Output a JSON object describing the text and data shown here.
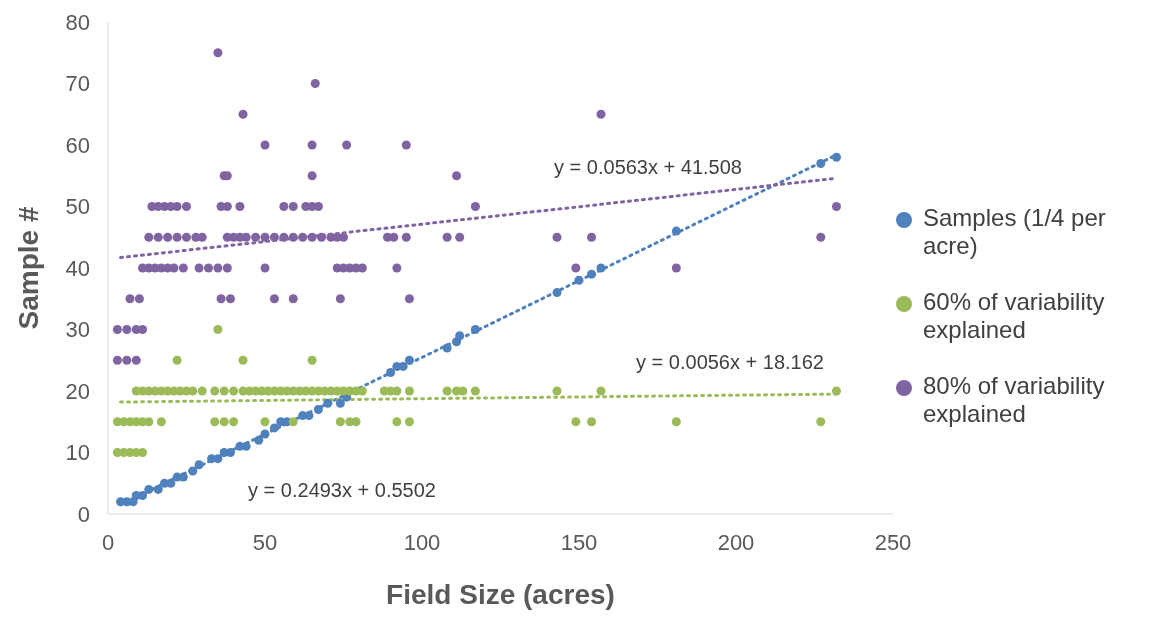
{
  "chart_data": {
    "type": "scatter",
    "xlabel": "Field Size (acres)",
    "ylabel": "Sample #",
    "xlim": [
      0,
      250
    ],
    "xticks": [
      0,
      50,
      100,
      150,
      200,
      250
    ],
    "ylim": [
      0,
      80
    ],
    "yticks": [
      0,
      10,
      20,
      30,
      40,
      50,
      60,
      70,
      80
    ],
    "grid": false,
    "legend": "right",
    "marker": "circle",
    "series": [
      {
        "name": "Samples (1/4 per acre)",
        "color": "#4f81bd",
        "x": [
          4,
          6,
          8,
          9,
          11,
          13,
          16,
          18,
          20,
          22,
          24,
          27,
          29,
          33,
          35,
          37,
          39,
          42,
          44,
          48,
          50,
          53,
          55,
          57,
          62,
          64,
          67,
          70,
          74,
          76,
          90,
          92,
          94,
          96,
          108,
          111,
          112,
          117,
          143,
          150,
          154,
          157,
          181,
          227,
          232
        ],
        "values": [
          2,
          2,
          2,
          3,
          3,
          4,
          4,
          5,
          5,
          6,
          6,
          7,
          8,
          9,
          9,
          10,
          10,
          11,
          11,
          12,
          13,
          14,
          15,
          15,
          16,
          16,
          17,
          18,
          18,
          19,
          23,
          24,
          24,
          25,
          27,
          28,
          29,
          30,
          36,
          38,
          39,
          40,
          46,
          57,
          58
        ]
      },
      {
        "name": "60% of variability explained",
        "color": "#9bbb59",
        "x": [
          3,
          5,
          7,
          9,
          11,
          3,
          5,
          7,
          9,
          11,
          13,
          17,
          34,
          37,
          40,
          50,
          59,
          74,
          77,
          79,
          92,
          96,
          149,
          154,
          181,
          227,
          9,
          11,
          13,
          15,
          17,
          19,
          21,
          23,
          25,
          27,
          30,
          34,
          37,
          40,
          43,
          45,
          47,
          49,
          51,
          53,
          55,
          57,
          59,
          61,
          63,
          65,
          67,
          69,
          71,
          73,
          75,
          77,
          79,
          81,
          88,
          90,
          92,
          96,
          108,
          111,
          113,
          117,
          143,
          157,
          232,
          22,
          43,
          65,
          35
        ],
        "values": [
          10,
          10,
          10,
          10,
          10,
          15,
          15,
          15,
          15,
          15,
          15,
          15,
          15,
          15,
          15,
          15,
          15,
          15,
          15,
          15,
          15,
          15,
          15,
          15,
          15,
          15,
          20,
          20,
          20,
          20,
          20,
          20,
          20,
          20,
          20,
          20,
          20,
          20,
          20,
          20,
          20,
          20,
          20,
          20,
          20,
          20,
          20,
          20,
          20,
          20,
          20,
          20,
          20,
          20,
          20,
          20,
          20,
          20,
          20,
          20,
          20,
          20,
          20,
          20,
          20,
          20,
          20,
          20,
          20,
          20,
          20,
          25,
          25,
          25,
          30
        ]
      },
      {
        "name": "80% of variability explained",
        "color": "#8064a2",
        "x": [
          3,
          6,
          9,
          3,
          6,
          9,
          11,
          7,
          10,
          36,
          39,
          53,
          59,
          74,
          96,
          11,
          13,
          15,
          17,
          19,
          21,
          24,
          29,
          32,
          35,
          38,
          50,
          73,
          75,
          77,
          79,
          81,
          92,
          149,
          181,
          13,
          16,
          19,
          22,
          25,
          28,
          30,
          38,
          40,
          42,
          44,
          47,
          50,
          53,
          56,
          59,
          62,
          65,
          68,
          71,
          73,
          75,
          89,
          91,
          95,
          108,
          112,
          143,
          154,
          227,
          14,
          16,
          18,
          20,
          22,
          25,
          36,
          38,
          42,
          56,
          59,
          63,
          65,
          67,
          117,
          232,
          37,
          38,
          65,
          111,
          50,
          65,
          76,
          95,
          43,
          157,
          66,
          35
        ],
        "values": [
          25,
          25,
          25,
          30,
          30,
          30,
          30,
          35,
          35,
          35,
          35,
          35,
          35,
          35,
          35,
          40,
          40,
          40,
          40,
          40,
          40,
          40,
          40,
          40,
          40,
          40,
          40,
          40,
          40,
          40,
          40,
          40,
          40,
          40,
          40,
          45,
          45,
          45,
          45,
          45,
          45,
          45,
          45,
          45,
          45,
          45,
          45,
          45,
          45,
          45,
          45,
          45,
          45,
          45,
          45,
          45,
          45,
          45,
          45,
          45,
          45,
          45,
          45,
          45,
          45,
          50,
          50,
          50,
          50,
          50,
          50,
          50,
          50,
          50,
          50,
          50,
          50,
          50,
          50,
          50,
          50,
          55,
          55,
          55,
          55,
          60,
          60,
          60,
          60,
          65,
          65,
          70,
          75
        ]
      },
      {
        "type": "line",
        "color": "#4f81bd",
        "line_style": "dotted",
        "marker": "none",
        "x": [
          4,
          232
        ],
        "values": [
          1.5,
          58.4
        ]
      },
      {
        "type": "line",
        "color": "#9bbb59",
        "line_style": "dotted",
        "marker": "none",
        "x": [
          4,
          232
        ],
        "values": [
          18.2,
          19.5
        ]
      },
      {
        "type": "line",
        "color": "#8064a2",
        "line_style": "dotted",
        "marker": "none",
        "x": [
          4,
          232
        ],
        "values": [
          41.7,
          54.6
        ]
      }
    ],
    "annotations": [
      "y = 0.2493x + 0.5502",
      "y = 0.0563x + 41.508",
      "y = 0.0056x + 18.162"
    ]
  }
}
